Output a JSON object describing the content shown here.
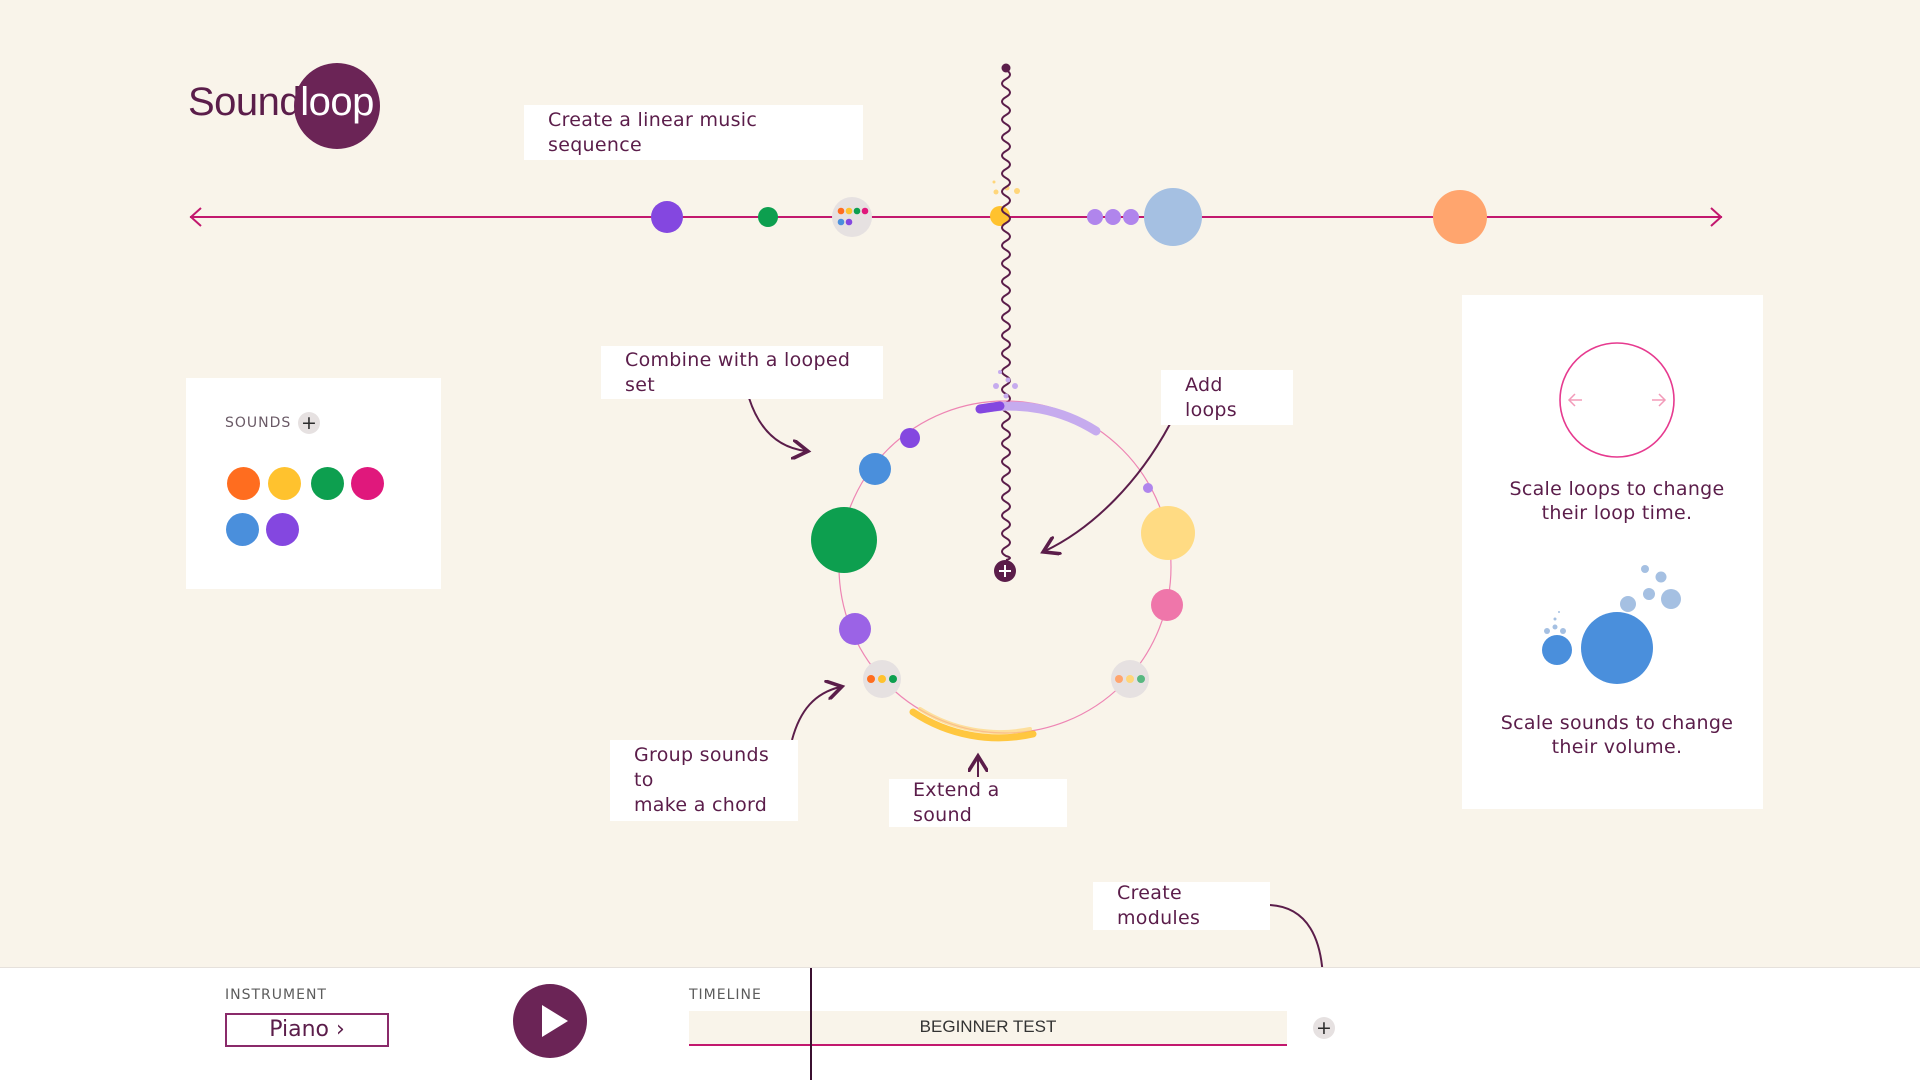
{
  "logo": {
    "word": "Sound",
    "circle_word": "loop"
  },
  "callouts": {
    "linear": "Create a linear music sequence",
    "combine": "Combine with a looped set",
    "add_loops": "Add loops",
    "group_line1": "Group sounds to",
    "group_line2": "make a chord",
    "extend": "Extend a sound",
    "modules": "Create modules"
  },
  "sounds_panel": {
    "title": "SOUNDS",
    "add_icon": "plus-icon",
    "colors": [
      "#ff6d1f",
      "#ffc22e",
      "#0d9f4f",
      "#e0187c",
      "#4a8fdc",
      "#8447e0"
    ]
  },
  "info_panel": {
    "scale_loops_line1": "Scale loops to change",
    "scale_loops_line2": "their loop time.",
    "scale_sounds_line1": "Scale sounds to change",
    "scale_sounds_line2": "their volume."
  },
  "bottom_bar": {
    "instrument_label": "INSTRUMENT",
    "instrument_value": "Piano ›",
    "play_icon": "play-icon",
    "timeline_label": "TIMELINE",
    "timeline_name": "BEGINNER TEST",
    "add_icon": "plus-icon"
  },
  "colors": {
    "accent": "#5b1d4a",
    "line": "#c2186e",
    "background": "#f9f4ea"
  }
}
